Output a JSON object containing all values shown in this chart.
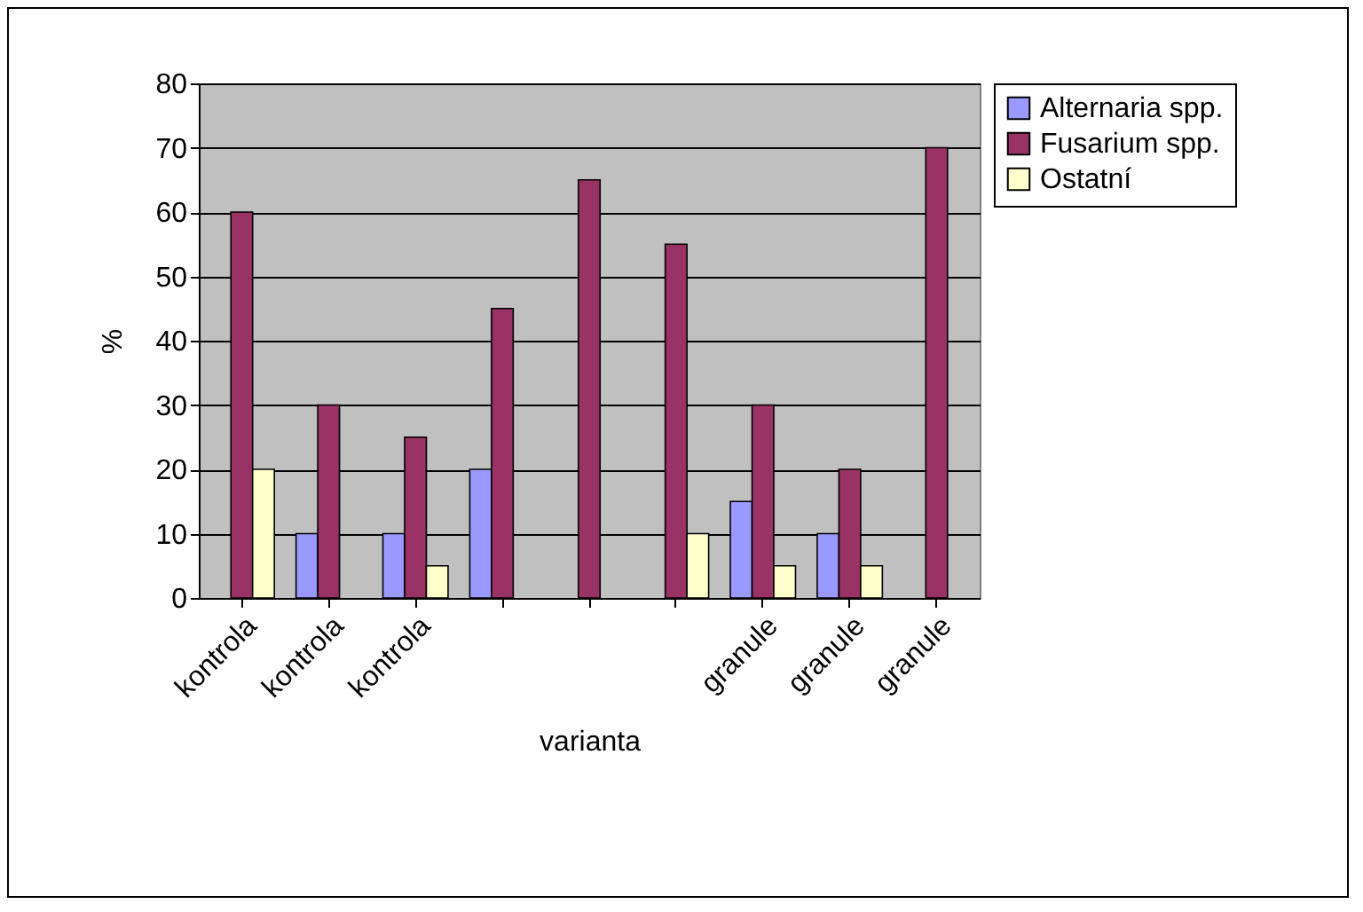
{
  "chart_data": {
    "type": "bar",
    "xlabel": "varianta",
    "ylabel": "%",
    "categories": [
      "kontrola",
      "kontrola",
      "kontrola",
      null,
      null,
      null,
      "granule",
      "granule",
      "granule"
    ],
    "series": [
      {
        "name": "Alternaria spp.",
        "color": "#9999ff",
        "values": [
          null,
          10,
          10,
          20,
          null,
          null,
          15,
          10,
          null
        ]
      },
      {
        "name": "Fusarium spp.",
        "color": "#993366",
        "values": [
          60,
          30,
          25,
          45,
          65,
          55,
          30,
          20,
          70
        ]
      },
      {
        "name": "Ostatní",
        "color": "#ffffcc",
        "values": [
          20,
          null,
          5,
          null,
          null,
          10,
          5,
          5,
          null
        ]
      }
    ],
    "ylim": [
      0,
      80
    ],
    "yticks": [
      0,
      10,
      20,
      30,
      40,
      50,
      60,
      70,
      80
    ],
    "grid": "y",
    "legend": "right"
  }
}
